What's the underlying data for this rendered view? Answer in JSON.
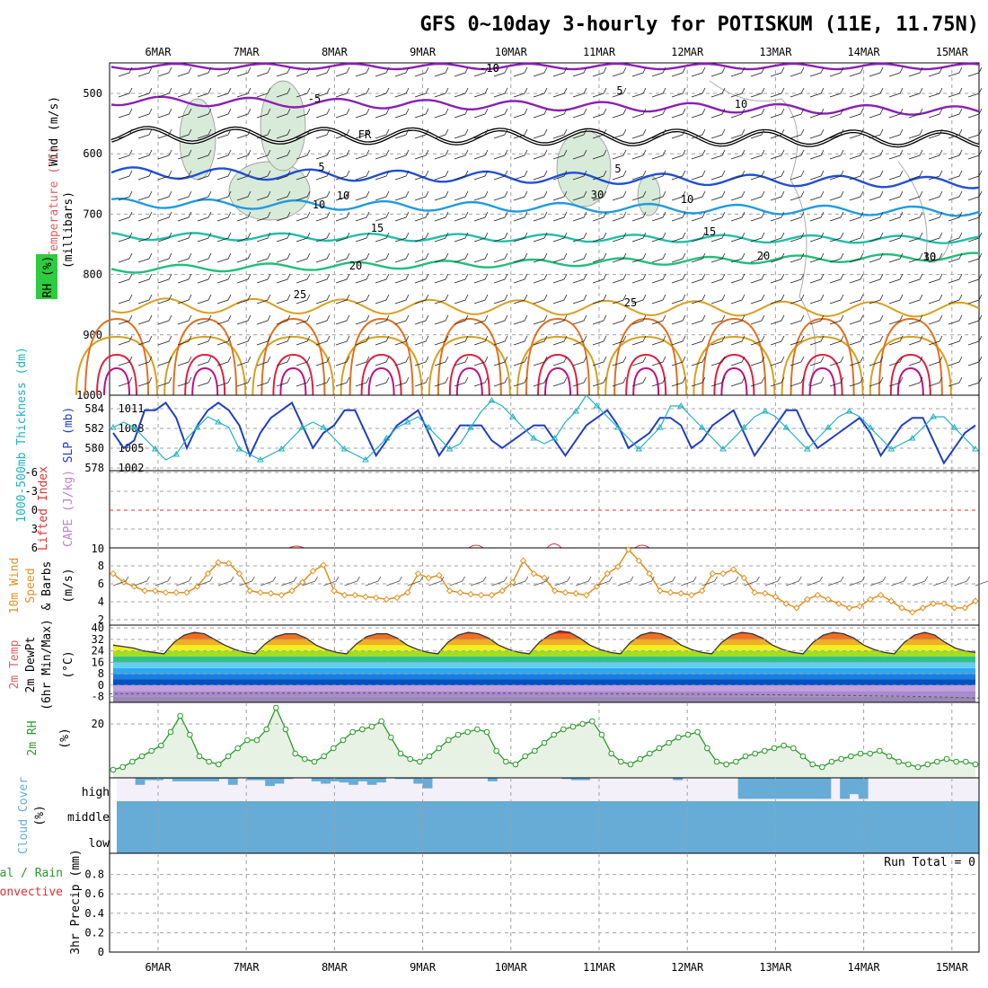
{
  "title": "GFS 0~10day 3-hourly for POTISKUM (11E, 11.75N)",
  "colors": {
    "grid": "#a0a0a0",
    "temp_purple": "#8a1fb5",
    "temp_blue": "#1f4fd6",
    "temp_lightblue": "#1f9be0",
    "temp_teal": "#1fbfa8",
    "temp_green": "#1fbf7a",
    "temp_orange_light": "#d9a020",
    "temp_orange": "#e07020",
    "temp_red": "#e02040",
    "temp_magenta": "#c01080",
    "rh_fill": "#d8ead8",
    "rh_line": "#2a9a2a",
    "slp_line": "#1f3fc0",
    "thickness_line": "#20b0c0",
    "wind_speed": "#e09020",
    "cloud": "#66acd6",
    "cloud_bg": "#f3f0fa",
    "lifted_zero": "#e03030",
    "wind_label": "#e09020",
    "cape_label": "#c080d0",
    "precip_total_label": "#2a9a2a",
    "precip_conv_label": "#e03030"
  },
  "x_labels": [
    "6MAR",
    "7MAR",
    "8MAR",
    "9MAR",
    "10MAR",
    "11MAR",
    "12MAR",
    "13MAR",
    "14MAR",
    "15MAR"
  ],
  "panels": {
    "upper": {
      "label_wind": "Wind (m/s)",
      "label_temp": "Temperature (°C)",
      "label_rh": "RH (%)",
      "label_mb": "(millibars)",
      "yticks": [
        "500",
        "600",
        "700",
        "800",
        "900",
        "1000"
      ],
      "contour_labels": [
        "-10",
        "-5",
        "FR",
        "5",
        "10",
        "15",
        "20",
        "25",
        "-10",
        "5",
        "5",
        "10",
        "15",
        "20",
        "25",
        "10",
        "30",
        "10",
        "30",
        "10"
      ]
    },
    "slp": {
      "label_thick": "1000-500mb Thickness (dm)",
      "label_slp": "SLP (mb)",
      "left_ticks": [
        "584",
        "582",
        "580",
        "578"
      ],
      "right_ticks": [
        "1011",
        "1008",
        "1005",
        "1002"
      ]
    },
    "lifted": {
      "label_li": "Lifted Index",
      "label_cape": "CAPE (J/kg)",
      "left_ticks": [
        "-6",
        "-3",
        "0",
        "3",
        "6"
      ],
      "right_ticks": [
        "10"
      ]
    },
    "wind10": {
      "label_a": "10m Wind",
      "label_b": "Speed",
      "label_c": "& Barbs",
      "label_unit": "(m/s)",
      "yticks": [
        "8",
        "6",
        "4",
        "2"
      ]
    },
    "temp2m": {
      "label_a": "2m Temp",
      "label_b": "2m DewPt",
      "label_c": "(6hr Min/Max)",
      "label_unit": "(°C)",
      "yticks": [
        "40",
        "32",
        "24",
        "16",
        "8",
        "0",
        "-8"
      ]
    },
    "rh2m": {
      "label_a": "2m RH",
      "label_unit": "(%)",
      "yticks": [
        "20"
      ]
    },
    "cloud": {
      "label_a": "Cloud Cover",
      "label_unit": "(%)",
      "levels": [
        "high",
        "middle",
        "low"
      ]
    },
    "precip": {
      "label_a": "Total / Rain",
      "label_b": "Convective",
      "label_c": "3hr Precip (mm)",
      "yticks": [
        "0.8",
        "0.6",
        "0.4",
        "0.2",
        "0"
      ],
      "run_total": "Run Total = 0"
    }
  },
  "chart_data": [
    {
      "type": "line",
      "name": "slp",
      "title": "",
      "ylabel": "SLP (mb)",
      "ylim": [
        1002,
        1012
      ],
      "values": [
        1007,
        1005,
        1006,
        1010,
        1010,
        1011,
        1009,
        1005,
        1008,
        1010,
        1011,
        1010,
        1008,
        1004,
        1007,
        1009,
        1010,
        1011,
        1008,
        1005,
        1007,
        1008,
        1010,
        1010,
        1007,
        1004,
        1006,
        1008,
        1009,
        1010,
        1007,
        1004,
        1006,
        1008,
        1008,
        1008,
        1006,
        1005,
        1006,
        1007,
        1008,
        1008,
        1006,
        1004,
        1006,
        1008,
        1009,
        1010,
        1008,
        1005,
        1006,
        1007,
        1009,
        1009,
        1008,
        1005,
        1006,
        1008,
        1009,
        1010,
        1007,
        1004,
        1006,
        1008,
        1010,
        1010,
        1007,
        1005,
        1006,
        1007,
        1008,
        1009,
        1007,
        1004,
        1006,
        1008,
        1009,
        1009,
        1006,
        1003,
        1005,
        1007,
        1008
      ]
    },
    {
      "type": "line",
      "name": "thickness",
      "ylabel": "1000-500mb Thickness (dm)",
      "ylim": [
        578,
        585
      ],
      "values": [
        582,
        582.5,
        582,
        581,
        580,
        579,
        579.5,
        581,
        582,
        583,
        582.5,
        582,
        580,
        579.5,
        579,
        579.5,
        580,
        581,
        582,
        582.5,
        582,
        581,
        580,
        579.5,
        579,
        580,
        581,
        582,
        582.5,
        583,
        582,
        581,
        580,
        580.5,
        582,
        583.5,
        584.5,
        584,
        583,
        582,
        581,
        580.5,
        581,
        582.5,
        583.5,
        585,
        584,
        583,
        582,
        581,
        580,
        581,
        582,
        584,
        584,
        583,
        582,
        581,
        580,
        581,
        582,
        583,
        583.5,
        583,
        582,
        581,
        580,
        581,
        582,
        583,
        583.5,
        583,
        582,
        581,
        580,
        580.5,
        581,
        582,
        583,
        583,
        582,
        581,
        580
      ]
    },
    {
      "type": "line",
      "name": "wind10_speed",
      "ylabel": "(m/s)",
      "ylim": [
        1,
        10
      ],
      "values": [
        7,
        6,
        5.5,
        5,
        5,
        4.8,
        4.8,
        4.8,
        5.5,
        7,
        8.3,
        8.2,
        7,
        5,
        4.8,
        4.7,
        4.5,
        5,
        6,
        7.3,
        8,
        5,
        4.5,
        4.5,
        4.3,
        4.2,
        4,
        4.2,
        4.8,
        7,
        6.5,
        6.8,
        5,
        4.8,
        4.6,
        4.5,
        4.5,
        5,
        6,
        8.5,
        7,
        6.5,
        5,
        4.8,
        4.7,
        4.5,
        5.5,
        7,
        7.8,
        9.8,
        8.5,
        7,
        5,
        4.8,
        4.7,
        4.5,
        5,
        7,
        7,
        7.5,
        6.5,
        4.8,
        4.7,
        4.3,
        3.5,
        3,
        4,
        4.5,
        4,
        3.5,
        3,
        3.2,
        4,
        4.5,
        3.8,
        3,
        2.5,
        3,
        3.5,
        3.5,
        3,
        3,
        3.8
      ]
    },
    {
      "type": "area",
      "name": "temp2m",
      "ylabel": "(°C)",
      "ylim": [
        -12,
        42
      ],
      "values": [
        28,
        27,
        26,
        24,
        23,
        22,
        30,
        35,
        37,
        36,
        32,
        28,
        25,
        23,
        22,
        29,
        34,
        36,
        36,
        33,
        28,
        25,
        23,
        22,
        29,
        34,
        36,
        36,
        33,
        28,
        25,
        23,
        22,
        30,
        35,
        37,
        36,
        33,
        28,
        25,
        23,
        22,
        30,
        35,
        38,
        37,
        33,
        28,
        25,
        23,
        22,
        30,
        35,
        37,
        36,
        33,
        28,
        25,
        23,
        22,
        30,
        35,
        37,
        36,
        33,
        28,
        25,
        23,
        22,
        30,
        35,
        37,
        36,
        33,
        28,
        25,
        23,
        22,
        30,
        35,
        37,
        35,
        30,
        26,
        24,
        23
      ]
    },
    {
      "type": "area",
      "name": "rh2m",
      "ylabel": "(%)",
      "ylim": [
        0,
        28
      ],
      "values": [
        3,
        4,
        6,
        8,
        10,
        12,
        17,
        23,
        16,
        8,
        6,
        5,
        8,
        11,
        14,
        14,
        18,
        26,
        18,
        9,
        7,
        6,
        8,
        11,
        14,
        17,
        18,
        19,
        21,
        15,
        9,
        7,
        6,
        8,
        11,
        14,
        16,
        17,
        18,
        17,
        10,
        6,
        5,
        8,
        10,
        13,
        16,
        18,
        19,
        20,
        21,
        16,
        9,
        6,
        5,
        7,
        9,
        11,
        13,
        15,
        16,
        17,
        11,
        6,
        5,
        6,
        8,
        9,
        10,
        11,
        12,
        11,
        8,
        5,
        4,
        6,
        7,
        8,
        9,
        9,
        10,
        8,
        6,
        5,
        4,
        5,
        6,
        7,
        6,
        6,
        5
      ]
    },
    {
      "type": "bar",
      "name": "cloud_high",
      "ylabel": "(%)",
      "ylim": [
        0,
        100
      ],
      "values": [
        0,
        0,
        30,
        10,
        10,
        5,
        15,
        15,
        15,
        15,
        15,
        5,
        30,
        0,
        10,
        10,
        35,
        25,
        5,
        0,
        0,
        15,
        25,
        15,
        20,
        30,
        15,
        30,
        20,
        0,
        5,
        5,
        25,
        45,
        0,
        0,
        0,
        0,
        0,
        0,
        15,
        0,
        0,
        0,
        0,
        0,
        0,
        0,
        5,
        10,
        10,
        0,
        0,
        0,
        0,
        0,
        0,
        0,
        0,
        0,
        10,
        0,
        0,
        0,
        0,
        0,
        0,
        90,
        90,
        90,
        90,
        90,
        90,
        90,
        90,
        90,
        90,
        0,
        90,
        70,
        90,
        0,
        0,
        0,
        0,
        0,
        0,
        0,
        0,
        0,
        0,
        0,
        0
      ]
    },
    {
      "type": "bar",
      "name": "precip",
      "ylabel": "3hr Precip (mm)",
      "ylim": [
        0,
        1
      ],
      "values": [
        0,
        0,
        0,
        0,
        0,
        0,
        0,
        0,
        0,
        0
      ]
    }
  ]
}
